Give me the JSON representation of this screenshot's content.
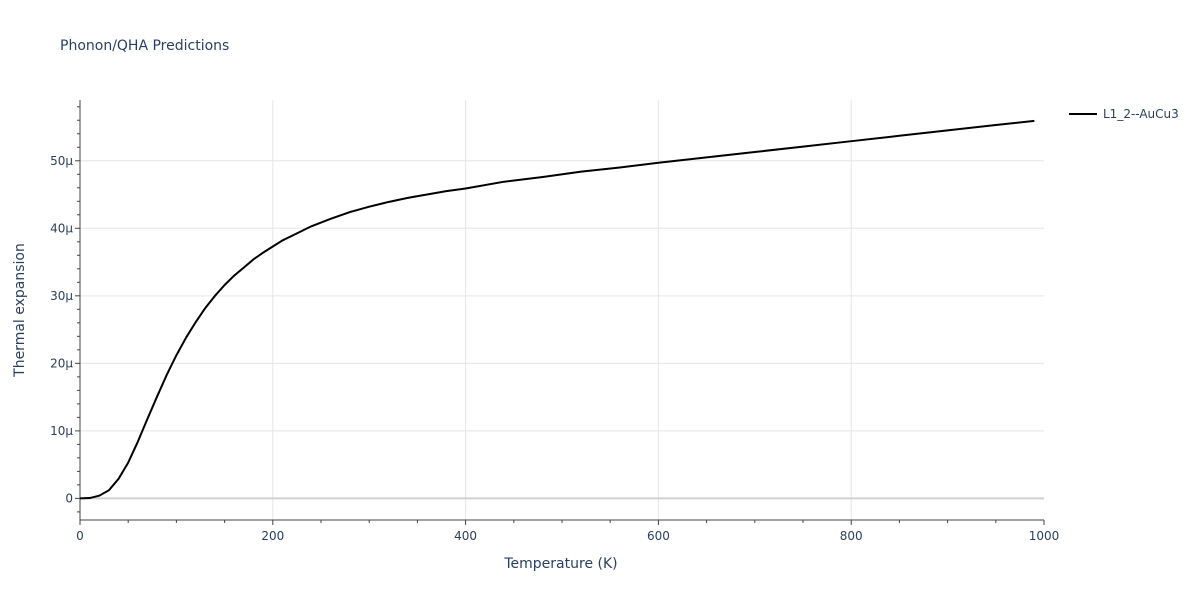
{
  "chart_data": {
    "type": "line",
    "title": "Phonon/QHA Predictions",
    "xlabel": "Temperature (K)",
    "ylabel": "Thermal expansion",
    "xlim": [
      0,
      1000
    ],
    "ylim": [
      -3.2e-06,
      5.9e-05
    ],
    "grid": true,
    "legend_position": "top-right",
    "x_ticks": [
      {
        "value": 0,
        "label": "0"
      },
      {
        "value": 200,
        "label": "200"
      },
      {
        "value": 400,
        "label": "400"
      },
      {
        "value": 600,
        "label": "600"
      },
      {
        "value": 800,
        "label": "800"
      },
      {
        "value": 1000,
        "label": "1000"
      }
    ],
    "y_ticks": [
      {
        "value": 0,
        "label": "0"
      },
      {
        "value": 1e-05,
        "label": "10μ"
      },
      {
        "value": 2e-05,
        "label": "20μ"
      },
      {
        "value": 3e-05,
        "label": "30μ"
      },
      {
        "value": 4e-05,
        "label": "40μ"
      },
      {
        "value": 5e-05,
        "label": "50μ"
      }
    ],
    "series": [
      {
        "name": "L1_2--AuCu3",
        "color": "#000000",
        "x": [
          0,
          10,
          20,
          30,
          40,
          50,
          60,
          70,
          80,
          90,
          100,
          110,
          120,
          130,
          140,
          150,
          160,
          170,
          180,
          190,
          200,
          210,
          220,
          240,
          260,
          280,
          300,
          320,
          340,
          360,
          380,
          400,
          440,
          480,
          520,
          560,
          600,
          650,
          700,
          750,
          800,
          850,
          900,
          950,
          990
        ],
        "y": [
          0,
          5e-08,
          4e-07,
          1.2e-06,
          2.9e-06,
          5.3e-06,
          8.4e-06,
          1.18e-05,
          1.51e-05,
          1.83e-05,
          2.12e-05,
          2.38e-05,
          2.61e-05,
          2.82e-05,
          3e-05,
          3.16e-05,
          3.3e-05,
          3.42e-05,
          3.54e-05,
          3.64e-05,
          3.73e-05,
          3.82e-05,
          3.89e-05,
          4.03e-05,
          4.14e-05,
          4.24e-05,
          4.32e-05,
          4.39e-05,
          4.45e-05,
          4.5e-05,
          4.55e-05,
          4.59e-05,
          4.69e-05,
          4.76e-05,
          4.84e-05,
          4.9e-05,
          4.97e-05,
          5.05e-05,
          5.13e-05,
          5.21e-05,
          5.29e-05,
          5.37e-05,
          5.45e-05,
          5.53e-05,
          5.59e-05
        ]
      }
    ]
  }
}
